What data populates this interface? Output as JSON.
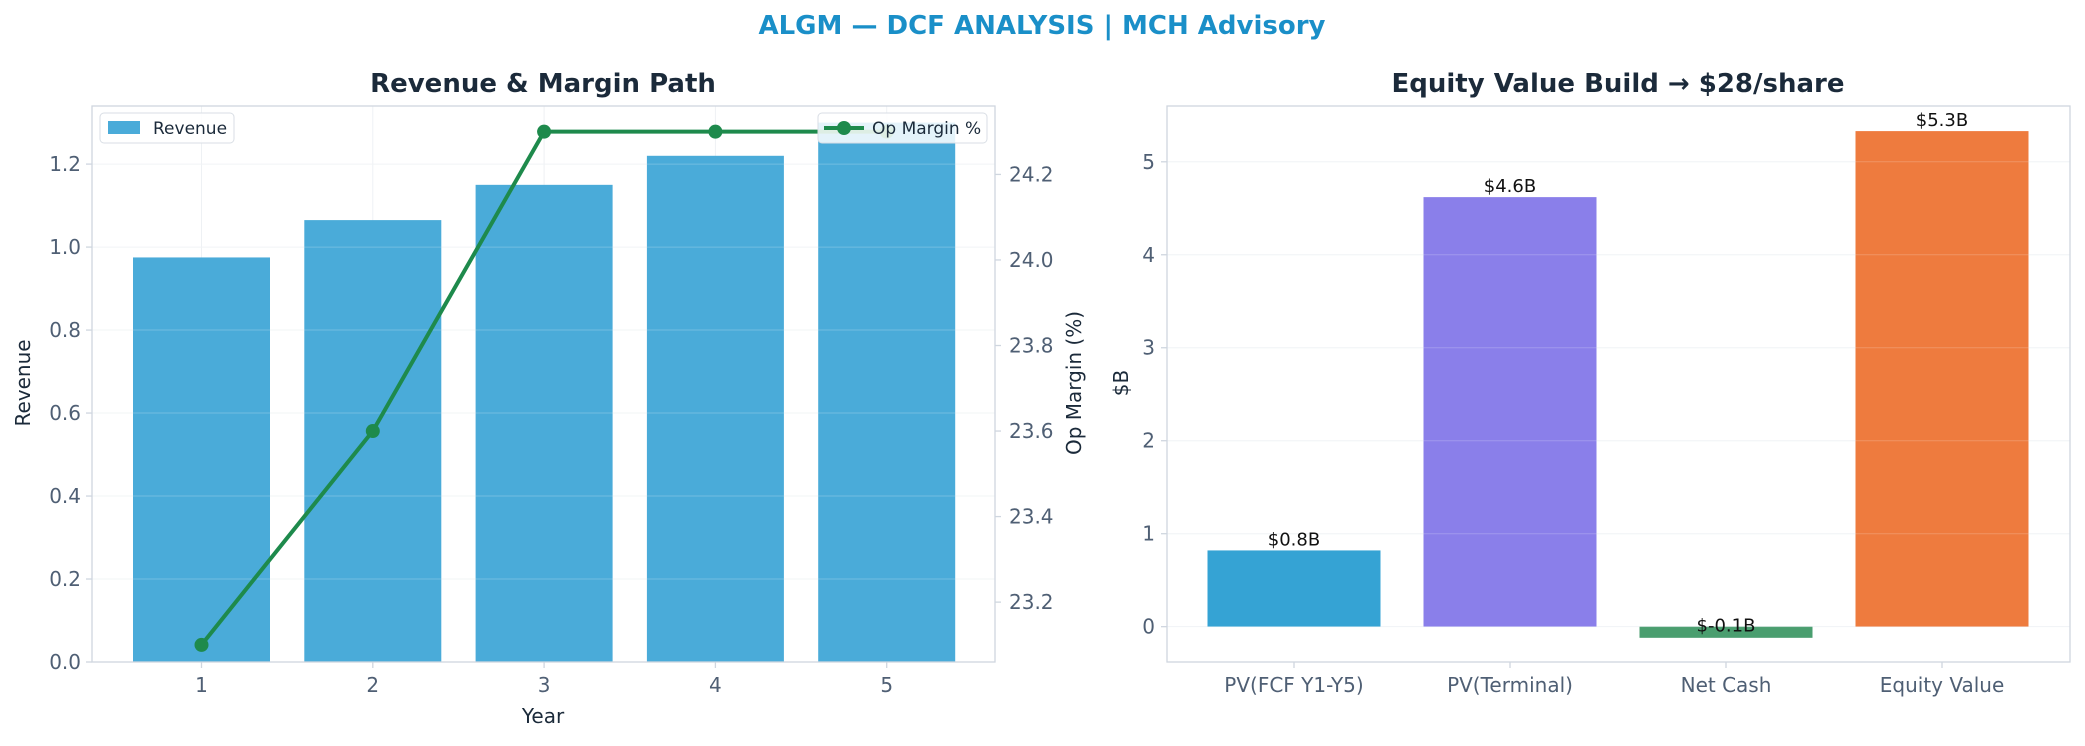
{
  "suptitle": "ALGM — DCF ANALYSIS | MCH Advisory",
  "colors": {
    "title_blue": "#1a8fc8",
    "dark_text": "#1b2a3a",
    "tick_text": "#4f5f74",
    "spine": "#cfd6df",
    "grid": "#eef1f4",
    "revenue_bar": "#4aabd9",
    "margin_line": "#1e8a4c"
  },
  "chart_data": [
    {
      "type": "bar",
      "title": "Revenue & Margin Path",
      "xlabel": "Year",
      "ylabel": "Revenue",
      "y2label": "Op Margin (%)",
      "categories": [
        "1",
        "2",
        "3",
        "4",
        "5"
      ],
      "ylim": [
        0,
        1.34
      ],
      "y2lim": [
        23.06,
        24.36
      ],
      "yticks": [
        "0.0",
        "0.2",
        "0.4",
        "0.6",
        "0.8",
        "1.0",
        "1.2"
      ],
      "y2ticks": [
        "23.2",
        "23.4",
        "23.6",
        "23.8",
        "24.0",
        "24.2"
      ],
      "grid": true,
      "series": [
        {
          "name": "Revenue",
          "type": "bar",
          "axis": "left",
          "values": [
            0.975,
            1.065,
            1.15,
            1.22,
            1.3
          ],
          "color": "#4aabd9"
        },
        {
          "name": "Op Margin %",
          "type": "line",
          "axis": "right",
          "values": [
            23.1,
            23.6,
            24.3,
            24.3,
            24.3
          ],
          "color": "#1e8a4c"
        }
      ],
      "legend": [
        {
          "label": "Revenue",
          "placement": "top-left"
        },
        {
          "label": "Op Margin %",
          "placement": "top-right"
        }
      ]
    },
    {
      "type": "bar",
      "title": "Equity Value Build → $28/share",
      "xlabel": "",
      "ylabel": "$B",
      "categories": [
        "PV(FCF Y1-Y5)",
        "PV(Terminal)",
        "Net Cash",
        "Equity Value"
      ],
      "values": [
        0.82,
        4.62,
        -0.12,
        5.33
      ],
      "data_labels": [
        "$0.8B",
        "$4.6B",
        "$-0.1B",
        "$5.3B"
      ],
      "colors": [
        "#35a3d4",
        "#8a7fea",
        "#4a9e6f",
        "#ee7b3e"
      ],
      "ylim": [
        -0.38,
        5.6
      ],
      "yticks": [
        "0",
        "1",
        "2",
        "3",
        "4",
        "5"
      ],
      "grid": true
    }
  ]
}
